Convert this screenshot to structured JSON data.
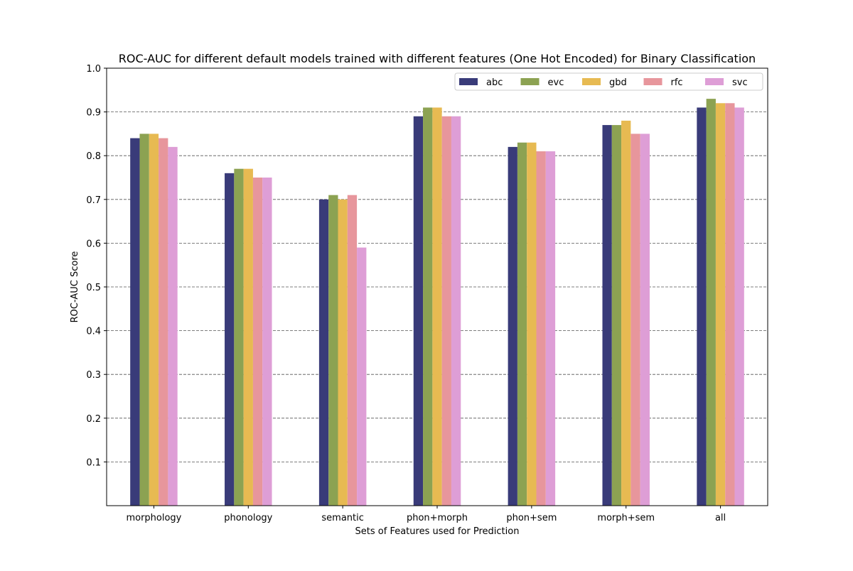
{
  "chart_data": {
    "type": "bar",
    "title": "ROC-AUC for different default models trained with different features (One Hot Encoded) for Binary Classification",
    "xlabel": "Sets of Features used for Prediction",
    "ylabel": "ROC-AUC Score",
    "categories": [
      "morphology",
      "phonology",
      "semantic",
      "phon+morph",
      "phon+sem",
      "morph+sem",
      "all"
    ],
    "series": [
      {
        "name": "abc",
        "color": "#393b79",
        "values": [
          0.84,
          0.76,
          0.7,
          0.89,
          0.82,
          0.87,
          0.91
        ]
      },
      {
        "name": "evc",
        "color": "#8ca252",
        "values": [
          0.85,
          0.77,
          0.71,
          0.91,
          0.83,
          0.87,
          0.93
        ]
      },
      {
        "name": "gbd",
        "color": "#e7ba52",
        "values": [
          0.85,
          0.77,
          0.7,
          0.91,
          0.83,
          0.88,
          0.92
        ]
      },
      {
        "name": "rfc",
        "color": "#e7969c",
        "values": [
          0.84,
          0.75,
          0.71,
          0.89,
          0.81,
          0.85,
          0.92
        ]
      },
      {
        "name": "svc",
        "color": "#de9ed6",
        "values": [
          0.82,
          0.75,
          0.59,
          0.89,
          0.81,
          0.85,
          0.91
        ]
      }
    ],
    "ylim": [
      0,
      1.0
    ],
    "yticks": [
      "0.1",
      "0.2",
      "0.3",
      "0.4",
      "0.5",
      "0.6",
      "0.7",
      "0.8",
      "0.9",
      "1.0"
    ],
    "grid": "horizontal dashed",
    "legend_position": "top-right"
  }
}
